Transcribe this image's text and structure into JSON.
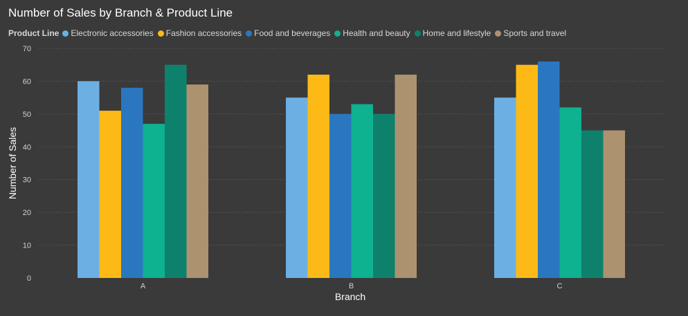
{
  "chart_data": {
    "type": "bar",
    "title": "Number of Sales by Branch & Product Line",
    "xlabel": "Branch",
    "ylabel": "Number of Sales",
    "legend_title": "Product Line",
    "legend_position": "top-left",
    "grid": true,
    "ylim": [
      0,
      70
    ],
    "yticks": [
      0,
      10,
      20,
      30,
      40,
      50,
      60,
      70
    ],
    "categories": [
      "A",
      "B",
      "C"
    ],
    "series": [
      {
        "name": "Electronic accessories",
        "color": "#6cb0e3",
        "values": [
          60,
          55,
          55
        ]
      },
      {
        "name": "Fashion accessories",
        "color": "#fdba16",
        "values": [
          51,
          62,
          65
        ]
      },
      {
        "name": "Food and beverages",
        "color": "#2a77c0",
        "values": [
          58,
          50,
          66
        ]
      },
      {
        "name": "Health and beauty",
        "color": "#0eb190",
        "values": [
          47,
          53,
          52
        ]
      },
      {
        "name": "Home and lifestyle",
        "color": "#0e816d",
        "values": [
          65,
          50,
          45
        ]
      },
      {
        "name": "Sports and travel",
        "color": "#ad9270",
        "values": [
          59,
          62,
          45
        ]
      }
    ]
  }
}
